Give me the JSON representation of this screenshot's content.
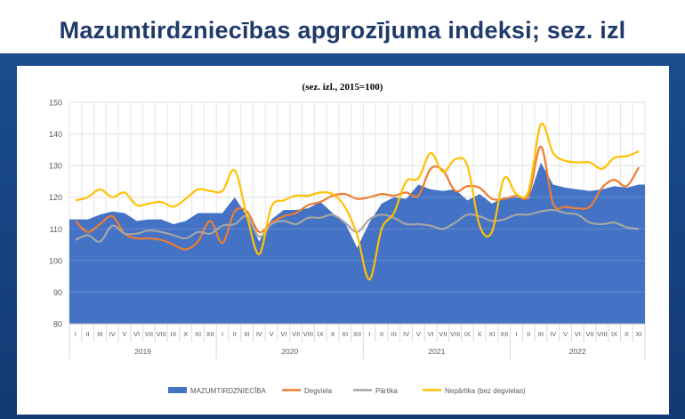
{
  "header": {
    "title": "Mazumtirdzniecības apgrozījuma indeksi; sez. izl"
  },
  "chart_data": {
    "type": "area",
    "subtitle": "(sez. izl., 2015=100)",
    "ylim": [
      80,
      150
    ],
    "yticks": [
      80,
      90,
      100,
      110,
      120,
      130,
      140,
      150
    ],
    "grid": true,
    "legend_position": "bottom",
    "categories": [
      "I",
      "II",
      "III",
      "IV",
      "V",
      "VI",
      "VII",
      "VIII",
      "IX",
      "X",
      "XI",
      "XII",
      "I",
      "II",
      "III",
      "IV",
      "V",
      "VI",
      "VII",
      "VIII",
      "IX",
      "X",
      "XI",
      "XII",
      "I",
      "II",
      "III",
      "IV",
      "V",
      "VI",
      "VII",
      "VIII",
      "IX",
      "X",
      "XI",
      "XII",
      "I",
      "II",
      "III",
      "IV",
      "V",
      "VI",
      "VII",
      "VIII",
      "IX",
      "X",
      "XI"
    ],
    "years": [
      {
        "label": "2019",
        "start": 0,
        "count": 12
      },
      {
        "label": "2020",
        "start": 12,
        "count": 12
      },
      {
        "label": "2021",
        "start": 24,
        "count": 12
      },
      {
        "label": "2022",
        "start": 36,
        "count": 11
      }
    ],
    "series": [
      {
        "name": "MAZUMTIRDZNIECĪBA",
        "kind": "area",
        "color": "#4472c4",
        "values": [
          113,
          113,
          114.5,
          115.5,
          115,
          112.5,
          113,
          113,
          111.5,
          112.5,
          115,
          115,
          115,
          120,
          114,
          106,
          113,
          116,
          116,
          116.5,
          118.5,
          115,
          112,
          104,
          112,
          118,
          120,
          119.5,
          124,
          122.5,
          122,
          122.5,
          119,
          121,
          118,
          120,
          120,
          119.5,
          131,
          124,
          123,
          122.5,
          122,
          122.5,
          123.5,
          123,
          124
        ]
      },
      {
        "name": "Degviela",
        "kind": "line",
        "color": "#ed7d31",
        "values": [
          112.5,
          109,
          111.5,
          114,
          108.5,
          107,
          107,
          106.5,
          105,
          103.5,
          106,
          112.5,
          105.5,
          115.5,
          115.5,
          109,
          112,
          114,
          115,
          117.5,
          118.5,
          120.5,
          121,
          119.5,
          120,
          121,
          120.5,
          121.5,
          120.5,
          129,
          128.5,
          122,
          123.5,
          123,
          119.5,
          119.5,
          120.5,
          120.5,
          136,
          118,
          117,
          116.5,
          117,
          123,
          125.5,
          123.5,
          129.5
        ]
      },
      {
        "name": "Pārtika",
        "kind": "line",
        "color": "#a5a5a5",
        "values": [
          106.5,
          108,
          106,
          111,
          108.5,
          108.5,
          109.5,
          109,
          108,
          107,
          109,
          108.5,
          111,
          111.5,
          114,
          107.5,
          111.5,
          112.5,
          111.5,
          113.5,
          113.5,
          114.5,
          112,
          109,
          113,
          114.5,
          113.5,
          111.5,
          111.5,
          111,
          110,
          112,
          114.5,
          114,
          112.5,
          113,
          114.5,
          114.5,
          115.5,
          116,
          115,
          114.5,
          112,
          111.5,
          112,
          110.5,
          110
        ]
      },
      {
        "name": "Nepārtika (bez degvielas)",
        "kind": "line",
        "color": "#ffc000",
        "values": [
          119,
          120,
          122.5,
          120,
          121.5,
          117.5,
          118,
          118.5,
          117,
          119.5,
          122.5,
          122,
          122,
          128.5,
          114,
          102,
          117,
          119,
          120.5,
          120.5,
          121.5,
          121,
          117,
          108,
          94,
          110,
          115,
          125,
          126,
          134,
          128,
          132,
          130,
          111,
          109,
          126,
          121,
          122,
          143,
          134,
          131.5,
          131,
          131,
          129,
          132.5,
          133,
          134.5
        ]
      }
    ]
  }
}
